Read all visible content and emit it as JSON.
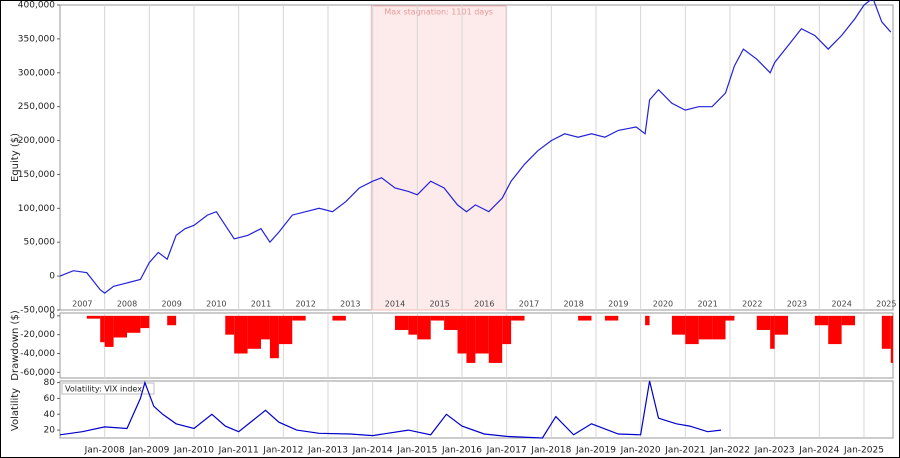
{
  "chart_data": [
    {
      "type": "line",
      "y_label": "Equity ($)",
      "annotation": "Max stagnation: 1101 days",
      "stagnation": [
        2013.97,
        2016.99
      ],
      "xlim": [
        2007,
        2025.65
      ],
      "ylim": [
        -50000,
        400000
      ],
      "xlabels": [
        2007,
        2008,
        2009,
        2010,
        2011,
        2012,
        2013,
        2014,
        2015,
        2016,
        2017,
        2018,
        2019,
        2020,
        2021,
        2022,
        2023,
        2024,
        2025
      ],
      "yticks": [
        {
          "value": -50000,
          "label": "-50,000"
        },
        0,
        {
          "value": 50000,
          "label": "50,000"
        },
        {
          "value": 100000,
          "label": "100,000"
        },
        {
          "value": 150000,
          "label": "150,000"
        },
        {
          "value": 200000,
          "label": "200,000"
        },
        {
          "value": 250000,
          "label": "250,000"
        },
        {
          "value": 300000,
          "label": "300,000"
        },
        {
          "value": 350000,
          "label": "350,000"
        },
        {
          "value": 400000,
          "label": "400,000"
        }
      ],
      "x": [
        2007.0,
        2007.3,
        2007.6,
        2007.9,
        2008.0,
        2008.2,
        2008.5,
        2008.8,
        2009.0,
        2009.2,
        2009.4,
        2009.6,
        2009.8,
        2010.0,
        2010.3,
        2010.5,
        2010.7,
        2010.9,
        2011.2,
        2011.5,
        2011.7,
        2011.9,
        2012.2,
        2012.5,
        2012.8,
        2013.1,
        2013.4,
        2013.7,
        2014.0,
        2014.2,
        2014.5,
        2014.8,
        2015.0,
        2015.3,
        2015.6,
        2015.9,
        2016.1,
        2016.3,
        2016.6,
        2016.9,
        2017.1,
        2017.4,
        2017.7,
        2018.0,
        2018.3,
        2018.6,
        2018.9,
        2019.2,
        2019.5,
        2019.9,
        2020.1,
        2020.2,
        2020.4,
        2020.7,
        2021.0,
        2021.3,
        2021.6,
        2021.9,
        2022.1,
        2022.3,
        2022.6,
        2022.9,
        2023.0,
        2023.3,
        2023.6,
        2023.9,
        2024.2,
        2024.5,
        2024.8,
        2025.0,
        2025.2,
        2025.4,
        2025.6
      ],
      "series": [
        {
          "color": "#2323d8",
          "values": [
            0,
            8000,
            5000,
            -20000,
            -25000,
            -15000,
            -10000,
            -5000,
            20000,
            35000,
            25000,
            60000,
            70000,
            75000,
            90000,
            95000,
            75000,
            55000,
            60000,
            70000,
            50000,
            65000,
            90000,
            95000,
            100000,
            95000,
            110000,
            130000,
            140000,
            145000,
            130000,
            125000,
            120000,
            140000,
            130000,
            105000,
            95000,
            105000,
            95000,
            115000,
            140000,
            165000,
            185000,
            200000,
            210000,
            205000,
            210000,
            205000,
            215000,
            220000,
            210000,
            260000,
            275000,
            255000,
            245000,
            250000,
            250000,
            270000,
            310000,
            335000,
            320000,
            300000,
            315000,
            340000,
            365000,
            355000,
            335000,
            355000,
            380000,
            400000,
            410000,
            375000,
            360000
          ]
        }
      ]
    },
    {
      "type": "area",
      "y_label": "Drawdown ($)",
      "xlim": [
        2007,
        2025.65
      ],
      "ylim": [
        -66000,
        3000
      ],
      "yticks": [
        {
          "value": -60000,
          "label": "-60,000"
        },
        {
          "value": -40000,
          "label": "-40,000"
        },
        {
          "value": -20000,
          "label": "-20,000"
        },
        0
      ],
      "x": [
        2007.0,
        2007.3,
        2007.6,
        2007.9,
        2008.0,
        2008.2,
        2008.5,
        2008.8,
        2009.0,
        2009.2,
        2009.4,
        2009.6,
        2009.8,
        2010.0,
        2010.3,
        2010.5,
        2010.7,
        2010.9,
        2011.2,
        2011.5,
        2011.7,
        2011.9,
        2012.2,
        2012.5,
        2012.8,
        2013.1,
        2013.4,
        2013.7,
        2014.0,
        2014.2,
        2014.5,
        2014.8,
        2015.0,
        2015.3,
        2015.6,
        2015.9,
        2016.1,
        2016.3,
        2016.6,
        2016.9,
        2017.1,
        2017.4,
        2017.7,
        2018.0,
        2018.3,
        2018.6,
        2018.9,
        2019.2,
        2019.5,
        2019.9,
        2020.1,
        2020.2,
        2020.4,
        2020.7,
        2021.0,
        2021.3,
        2021.6,
        2021.9,
        2022.1,
        2022.3,
        2022.6,
        2022.9,
        2023.0,
        2023.3,
        2023.6,
        2023.9,
        2024.2,
        2024.5,
        2024.8,
        2025.0,
        2025.2,
        2025.4,
        2025.6
      ],
      "series": [
        {
          "color": "#ff0000",
          "values": [
            0,
            0,
            -3000,
            -28000,
            -33000,
            -23000,
            -18000,
            -13000,
            0,
            0,
            -10000,
            0,
            0,
            0,
            0,
            0,
            -20000,
            -40000,
            -35000,
            -25000,
            -45000,
            -30000,
            -5000,
            0,
            0,
            -5000,
            0,
            0,
            0,
            0,
            -15000,
            -20000,
            -25000,
            -5000,
            -15000,
            -40000,
            -50000,
            -40000,
            -50000,
            -30000,
            -5000,
            0,
            0,
            0,
            0,
            -5000,
            0,
            -5000,
            0,
            0,
            -10000,
            0,
            0,
            -20000,
            -30000,
            -25000,
            -25000,
            -5000,
            0,
            0,
            -15000,
            -35000,
            -20000,
            0,
            0,
            -10000,
            -30000,
            -10000,
            0,
            0,
            0,
            -35000,
            -50000
          ]
        }
      ]
    },
    {
      "type": "line",
      "y_label": "Volatility",
      "legend": "Volatility: VIX index",
      "xlim": [
        2007,
        2025.65
      ],
      "ylim": [
        10,
        82
      ],
      "yticks": [
        20,
        40,
        60,
        80
      ],
      "xticks": [
        {
          "value": 2008,
          "label": "Jan-2008"
        },
        {
          "value": 2009,
          "label": "Jan-2009"
        },
        {
          "value": 2010,
          "label": "Jan-2010"
        },
        {
          "value": 2011,
          "label": "Jan-2011"
        },
        {
          "value": 2012,
          "label": "Jan-2012"
        },
        {
          "value": 2013,
          "label": "Jan-2013"
        },
        {
          "value": 2014,
          "label": "Jan-2014"
        },
        {
          "value": 2015,
          "label": "Jan-2015"
        },
        {
          "value": 2016,
          "label": "Jan-2016"
        },
        {
          "value": 2017,
          "label": "Jan-2017"
        },
        {
          "value": 2018,
          "label": "Jan-2018"
        },
        {
          "value": 2019,
          "label": "Jan-2019"
        },
        {
          "value": 2020,
          "label": "Jan-2020"
        },
        {
          "value": 2021,
          "label": "Jan-2021"
        },
        {
          "value": 2022,
          "label": "Jan-2022"
        },
        {
          "value": 2023,
          "label": "Jan-2023"
        },
        {
          "value": 2024,
          "label": "Jan-2024"
        },
        {
          "value": 2025,
          "label": "Jan-2025"
        }
      ],
      "x": [
        2007.0,
        2007.5,
        2008.0,
        2008.5,
        2008.8,
        2008.9,
        2009.1,
        2009.3,
        2009.6,
        2010.0,
        2010.4,
        2010.7,
        2011.0,
        2011.6,
        2011.9,
        2012.3,
        2012.8,
        2013.5,
        2014.0,
        2014.8,
        2015.3,
        2015.65,
        2016.0,
        2016.5,
        2017.0,
        2017.8,
        2018.1,
        2018.5,
        2018.9,
        2019.5,
        2020.0,
        2020.2,
        2020.4,
        2020.8,
        2021.1,
        2021.5,
        2021.8
      ],
      "series": [
        {
          "color": "#0000cc",
          "values": [
            14,
            18,
            24,
            22,
            60,
            80,
            50,
            40,
            28,
            22,
            40,
            25,
            18,
            45,
            30,
            20,
            16,
            15,
            13,
            20,
            14,
            40,
            25,
            15,
            12,
            10,
            37,
            14,
            28,
            15,
            14,
            82,
            35,
            28,
            25,
            18,
            20
          ]
        }
      ]
    }
  ]
}
